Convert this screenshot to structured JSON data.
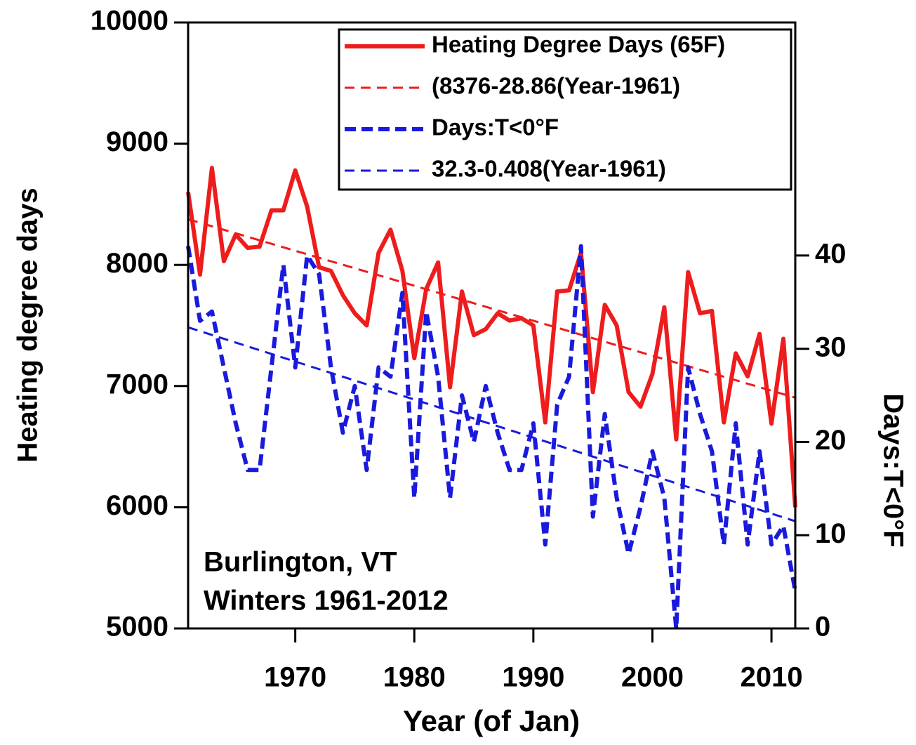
{
  "chart_data": {
    "type": "line",
    "x_label": "Year (of Jan)",
    "y_label": "Heating degree days",
    "y2_label": "Days:T<0°F",
    "annotations": [
      "Burlington, VT",
      "Winters 1961-2012"
    ],
    "x": [
      1961,
      1962,
      1963,
      1964,
      1965,
      1966,
      1967,
      1968,
      1969,
      1970,
      1971,
      1972,
      1973,
      1974,
      1975,
      1976,
      1977,
      1978,
      1979,
      1980,
      1981,
      1982,
      1983,
      1984,
      1985,
      1986,
      1987,
      1988,
      1989,
      1990,
      1991,
      1992,
      1993,
      1994,
      1995,
      1996,
      1997,
      1998,
      1999,
      2000,
      2001,
      2002,
      2003,
      2004,
      2005,
      2006,
      2007,
      2008,
      2009,
      2010,
      2011,
      2012
    ],
    "series": [
      {
        "name": "Heating Degree Days (65F)",
        "color": "#ee1c1c",
        "style": "solid",
        "values": [
          8600,
          7920,
          8800,
          8030,
          8250,
          8140,
          8150,
          8450,
          8450,
          8780,
          8480,
          7980,
          7950,
          7750,
          7600,
          7500,
          8100,
          8290,
          7950,
          7230,
          7800,
          8020,
          6990,
          7780,
          7420,
          7470,
          7600,
          7540,
          7560,
          7500,
          6700,
          7780,
          7790,
          8100,
          6950,
          7670,
          7500,
          6950,
          6830,
          7100,
          7650,
          6560,
          7940,
          7600,
          7620,
          6700,
          7270,
          7080,
          7430,
          6690,
          7390,
          6000
        ]
      },
      {
        "name": "(8376-28.86(Year-1961)",
        "color": "#ee1c1c",
        "style": "dashed",
        "x": [
          1961,
          2012
        ],
        "values": [
          8376,
          6904
        ]
      },
      {
        "name": "Days:T<0°F",
        "color": "#1a1adc",
        "style": "dashed",
        "axis": "y2",
        "values": [
          41,
          33,
          34,
          28,
          22,
          17,
          17,
          28,
          39,
          28,
          40,
          38,
          28,
          21,
          26,
          17,
          28,
          27,
          36,
          14,
          34,
          27,
          14,
          25,
          20,
          26,
          21,
          17,
          17,
          22,
          9,
          24,
          27,
          41,
          12,
          23,
          14,
          8,
          13,
          19,
          14,
          0,
          28,
          23,
          19,
          9,
          22,
          9,
          19,
          9,
          11,
          4
        ]
      },
      {
        "name": "32.3-0.408(Year-1961)",
        "color": "#1a1adc",
        "style": "dashed",
        "axis": "y2",
        "x": [
          1961,
          2012
        ],
        "values": [
          32.3,
          11.5
        ]
      }
    ],
    "xlim": [
      1961,
      2012
    ],
    "xticks": [
      1970,
      1980,
      1990,
      2000,
      2010
    ],
    "ylim": [
      5000,
      10000
    ],
    "yticks": [
      5000,
      6000,
      7000,
      8000,
      9000,
      10000
    ],
    "y2lim": [
      0,
      65
    ],
    "y2ticks": [
      0,
      10,
      20,
      30,
      40
    ],
    "legend": "upper right",
    "y_label_color": "#ee1c1c",
    "y2_label_color": "#1a1adc"
  }
}
